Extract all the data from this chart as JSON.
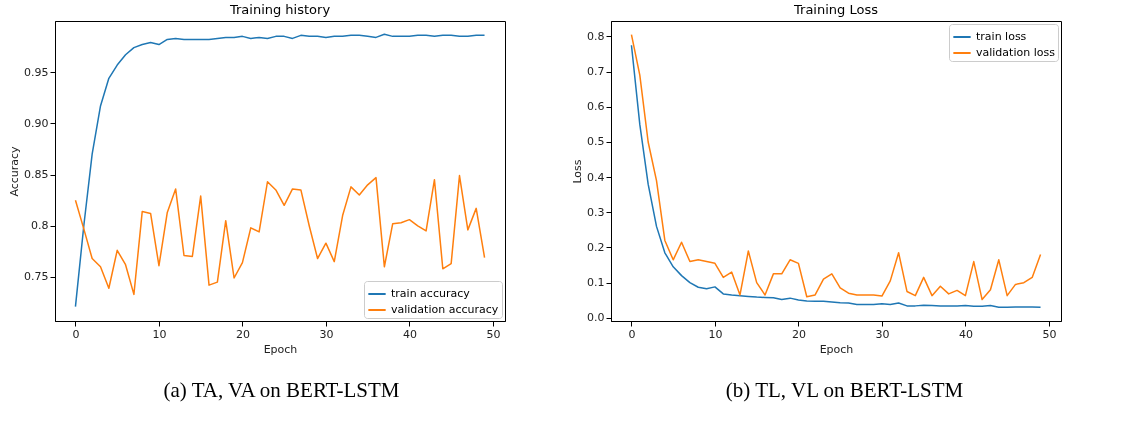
{
  "chart_data": [
    {
      "type": "line",
      "title": "Training history",
      "xlabel": "Epoch",
      "ylabel": "Accuracy",
      "annotations": [
        "(a) TA, VA on BERT-LSTM"
      ],
      "x": [
        0,
        1,
        2,
        3,
        4,
        5,
        6,
        7,
        8,
        9,
        10,
        11,
        12,
        13,
        14,
        15,
        16,
        17,
        18,
        19,
        20,
        21,
        22,
        23,
        24,
        25,
        26,
        27,
        28,
        29,
        30,
        31,
        32,
        33,
        34,
        35,
        36,
        37,
        38,
        39,
        40,
        41,
        42,
        43,
        44,
        45,
        46,
        47,
        48,
        49
      ],
      "series": [
        {
          "name": "train accuracy",
          "color": "#1f77b4",
          "values": [
            0.721,
            0.8,
            0.87,
            0.917,
            0.944,
            0.957,
            0.967,
            0.974,
            0.977,
            0.979,
            0.977,
            0.982,
            0.983,
            0.982,
            0.982,
            0.982,
            0.982,
            0.983,
            0.984,
            0.984,
            0.985,
            0.983,
            0.984,
            0.983,
            0.985,
            0.985,
            0.983,
            0.986,
            0.985,
            0.985,
            0.984,
            0.985,
            0.985,
            0.986,
            0.986,
            0.985,
            0.984,
            0.987,
            0.985,
            0.985,
            0.985,
            0.986,
            0.986,
            0.985,
            0.986,
            0.986,
            0.985,
            0.985,
            0.986,
            0.986
          ]
        },
        {
          "name": "validation accuracy",
          "color": "#ff7f0e",
          "values": [
            0.825,
            0.797,
            0.768,
            0.76,
            0.739,
            0.776,
            0.762,
            0.733,
            0.814,
            0.812,
            0.761,
            0.813,
            0.836,
            0.771,
            0.77,
            0.829,
            0.742,
            0.745,
            0.805,
            0.749,
            0.764,
            0.798,
            0.794,
            0.843,
            0.835,
            0.82,
            0.836,
            0.835,
            0.8,
            0.768,
            0.783,
            0.765,
            0.81,
            0.838,
            0.83,
            0.84,
            0.847,
            0.76,
            0.802,
            0.803,
            0.806,
            0.8,
            0.795,
            0.845,
            0.758,
            0.763,
            0.849,
            0.796,
            0.817,
            0.769
          ]
        }
      ],
      "xlim": [
        -2.45,
        51.45
      ],
      "xticks": [
        0,
        10,
        20,
        30,
        40,
        50
      ],
      "ylim": [
        0.707,
        1.0
      ],
      "yticks": [
        0.75,
        0.8,
        {
          "value": 0.85,
          "label": "0.85"
        },
        {
          "value": 0.9,
          "label": "0.90"
        },
        0.95
      ],
      "legend": "bottom right",
      "grid": false
    },
    {
      "type": "line",
      "title": "Training Loss",
      "xlabel": "Epoch",
      "ylabel": "Loss",
      "annotations": [
        "(b) TL, VL on BERT-LSTM"
      ],
      "x": [
        0,
        1,
        2,
        3,
        4,
        5,
        6,
        7,
        8,
        9,
        10,
        11,
        12,
        13,
        14,
        15,
        16,
        17,
        18,
        19,
        20,
        21,
        22,
        23,
        24,
        25,
        26,
        27,
        28,
        29,
        30,
        31,
        32,
        33,
        34,
        35,
        36,
        37,
        38,
        39,
        40,
        41,
        42,
        43,
        44,
        45,
        46,
        47,
        48,
        49
      ],
      "series": [
        {
          "name": "train loss",
          "color": "#1f77b4",
          "values": [
            0.775,
            0.55,
            0.38,
            0.26,
            0.185,
            0.145,
            0.12,
            0.1,
            0.087,
            0.083,
            0.088,
            0.068,
            0.065,
            0.063,
            0.061,
            0.059,
            0.058,
            0.057,
            0.052,
            0.056,
            0.051,
            0.048,
            0.047,
            0.047,
            0.045,
            0.043,
            0.042,
            0.038,
            0.038,
            0.038,
            0.04,
            0.038,
            0.042,
            0.034,
            0.034,
            0.036,
            0.035,
            0.034,
            0.034,
            0.034,
            0.035,
            0.033,
            0.033,
            0.035,
            0.03,
            0.03,
            0.031,
            0.031,
            0.031,
            0.03
          ]
        },
        {
          "name": "validation loss",
          "color": "#ff7f0e",
          "values": [
            0.805,
            0.69,
            0.5,
            0.39,
            0.22,
            0.165,
            0.215,
            0.16,
            0.165,
            0.16,
            0.155,
            0.115,
            0.13,
            0.065,
            0.19,
            0.1,
            0.065,
            0.125,
            0.125,
            0.165,
            0.155,
            0.06,
            0.065,
            0.11,
            0.125,
            0.085,
            0.07,
            0.065,
            0.065,
            0.065,
            0.062,
            0.105,
            0.185,
            0.075,
            0.063,
            0.115,
            0.063,
            0.09,
            0.068,
            0.078,
            0.063,
            0.16,
            0.052,
            0.08,
            0.165,
            0.063,
            0.095,
            0.1,
            0.115,
            0.18
          ]
        }
      ],
      "xlim": [
        -2.45,
        51.45
      ],
      "xticks": [
        0,
        10,
        20,
        30,
        40,
        50
      ],
      "ylim": [
        -0.009,
        0.844
      ],
      "yticks": [
        {
          "value": 0,
          "label": "0.0"
        },
        0.1,
        0.2,
        0.3,
        0.4,
        0.5,
        0.6,
        0.7,
        0.8
      ],
      "legend": "top right",
      "grid": false
    }
  ]
}
